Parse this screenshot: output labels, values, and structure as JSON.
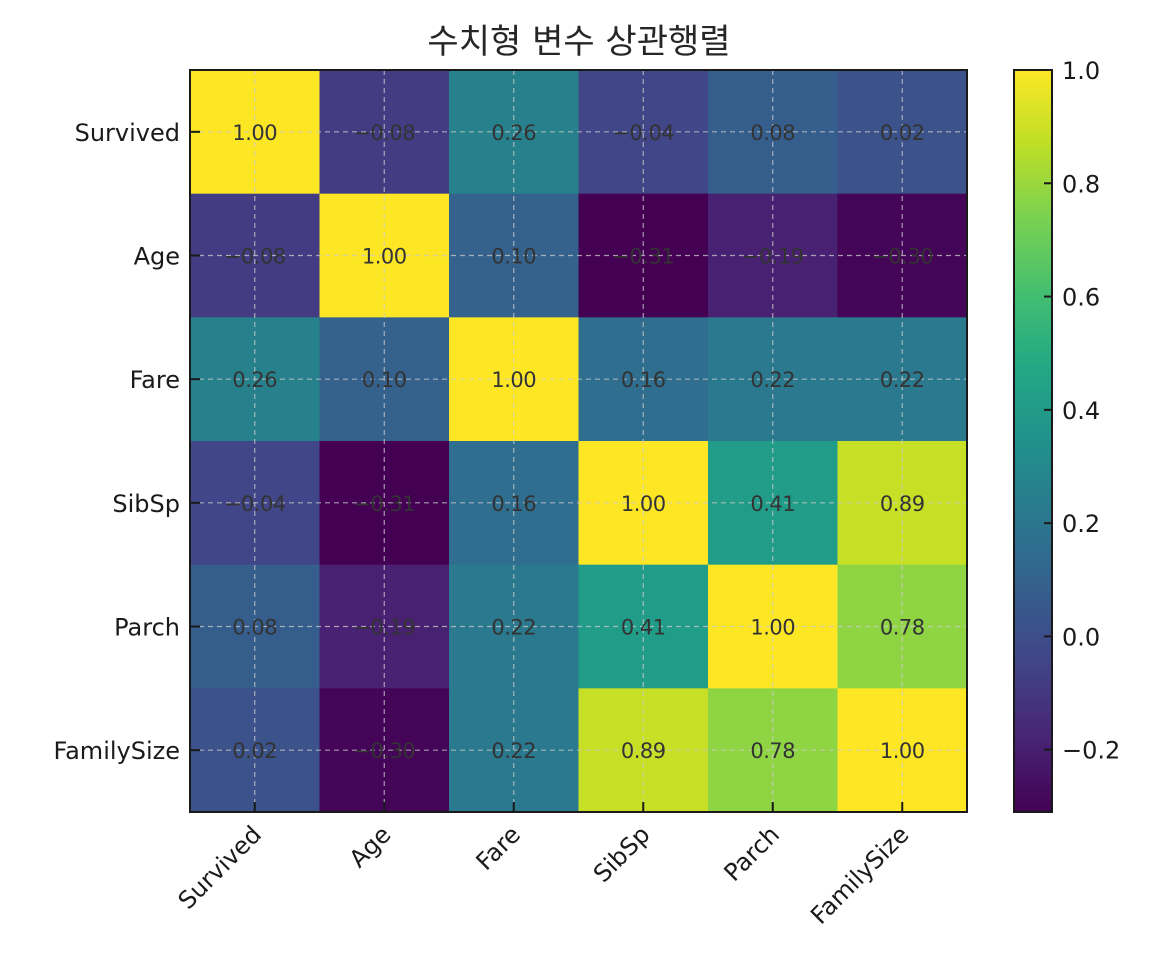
{
  "chart_data": {
    "type": "heatmap",
    "title": "수치형 변수 상관행렬",
    "xlabel": "",
    "ylabel": "",
    "x_categories": [
      "Survived",
      "Age",
      "Fare",
      "SibSp",
      "Parch",
      "FamilySize"
    ],
    "y_categories": [
      "Survived",
      "Age",
      "Fare",
      "SibSp",
      "Parch",
      "FamilySize"
    ],
    "values": [
      [
        1.0,
        -0.08,
        0.26,
        -0.04,
        0.08,
        0.02
      ],
      [
        -0.08,
        1.0,
        0.1,
        -0.31,
        -0.19,
        -0.3
      ],
      [
        0.26,
        0.1,
        1.0,
        0.16,
        0.22,
        0.22
      ],
      [
        -0.04,
        -0.31,
        0.16,
        1.0,
        0.41,
        0.89
      ],
      [
        0.08,
        -0.19,
        0.22,
        0.41,
        1.0,
        0.78
      ],
      [
        0.02,
        -0.3,
        0.22,
        0.89,
        0.78,
        1.0
      ]
    ],
    "colormap": "viridis",
    "vmin": -0.31,
    "vmax": 1.0,
    "grid": true,
    "colorbar": {
      "ticks": [
        -0.2,
        0.0,
        0.2,
        0.4,
        0.6,
        0.8,
        1.0
      ],
      "tick_labels": [
        "−0.2",
        "0.0",
        "0.2",
        "0.4",
        "0.6",
        "0.8",
        "1.0"
      ],
      "position": "right"
    }
  }
}
